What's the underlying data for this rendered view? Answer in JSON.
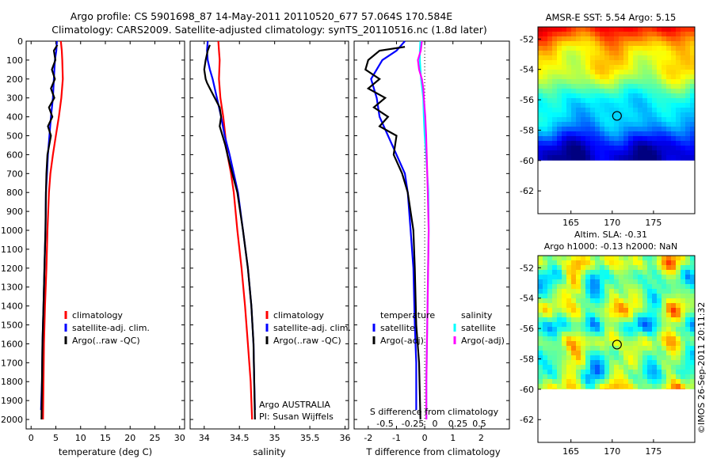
{
  "figure": {
    "title_line1": "Argo profile: CS 5901698_87 14-May-2011 20110520_677 57.064S 170.584E",
    "title_line2": "Climatology: CARS2009. Satellite-adjusted climatology: synTS_20110516.nc (1.8d later)",
    "side_stamp": "©IMOS 26-Sep-2011 20:11:32"
  },
  "colors": {
    "climatology": "#ff0000",
    "satellite": "#0000ff",
    "argo": "#000000",
    "salinity_satellite": "#00ffff",
    "salinity_argo": "#ff00ff"
  },
  "chart_data": [
    {
      "id": "temperature",
      "type": "line",
      "xlabel": "temperature (deg C)",
      "xlim": [
        -1,
        31
      ],
      "xticks": [
        0,
        5,
        10,
        15,
        20,
        25,
        30
      ],
      "ylim": [
        2050,
        0
      ],
      "yticks": [
        0,
        100,
        200,
        300,
        400,
        500,
        600,
        700,
        800,
        900,
        1000,
        1100,
        1200,
        1300,
        1400,
        1500,
        1600,
        1700,
        1800,
        1900,
        2000
      ],
      "legend": [
        "climatology",
        "satellite-adj. clim.",
        "Argo(..raw -QC)"
      ],
      "series": [
        {
          "name": "climatology",
          "color": "#ff0000",
          "points": [
            [
              6.0,
              0
            ],
            [
              6.2,
              50
            ],
            [
              6.3,
              100
            ],
            [
              6.4,
              200
            ],
            [
              6.1,
              300
            ],
            [
              5.6,
              400
            ],
            [
              5.0,
              500
            ],
            [
              4.4,
              600
            ],
            [
              3.9,
              700
            ],
            [
              3.6,
              800
            ],
            [
              3.3,
              1000
            ],
            [
              3.1,
              1200
            ],
            [
              2.8,
              1400
            ],
            [
              2.6,
              1600
            ],
            [
              2.5,
              1800
            ],
            [
              2.4,
              2000
            ]
          ]
        },
        {
          "name": "satellite-adj. clim.",
          "color": "#0000ff",
          "points": [
            [
              5.2,
              0
            ],
            [
              5.1,
              50
            ],
            [
              4.8,
              100
            ],
            [
              4.6,
              200
            ],
            [
              4.4,
              300
            ],
            [
              4.0,
              400
            ],
            [
              3.7,
              500
            ],
            [
              3.4,
              600
            ],
            [
              3.2,
              700
            ],
            [
              3.0,
              800
            ],
            [
              2.9,
              1000
            ],
            [
              2.7,
              1200
            ],
            [
              2.5,
              1400
            ],
            [
              2.3,
              1600
            ],
            [
              2.2,
              1800
            ],
            [
              2.0,
              1950
            ]
          ]
        },
        {
          "name": "Argo(..raw -QC)",
          "color": "#000000",
          "points": [
            [
              5.3,
              20
            ],
            [
              4.6,
              50
            ],
            [
              4.9,
              100
            ],
            [
              4.2,
              150
            ],
            [
              4.8,
              200
            ],
            [
              4.0,
              250
            ],
            [
              4.7,
              300
            ],
            [
              3.6,
              350
            ],
            [
              4.3,
              400
            ],
            [
              3.4,
              450
            ],
            [
              4.0,
              500
            ],
            [
              3.3,
              600
            ],
            [
              3.1,
              700
            ],
            [
              3.0,
              800
            ],
            [
              2.9,
              1000
            ],
            [
              2.7,
              1200
            ],
            [
              2.5,
              1400
            ],
            [
              2.3,
              1600
            ],
            [
              2.2,
              1800
            ],
            [
              2.1,
              2000
            ]
          ]
        }
      ]
    },
    {
      "id": "salinity",
      "type": "line",
      "xlabel": "salinity",
      "xlim": [
        33.8,
        36.05
      ],
      "xticks": [
        34,
        34.5,
        35,
        35.5,
        36
      ],
      "xticklabels": [
        "34",
        "34.5",
        "35",
        "35.5",
        "36"
      ],
      "ylim": [
        2050,
        0
      ],
      "legend": [
        "climatology",
        "satellite-adj. clim.",
        "Argo(..raw -QC)"
      ],
      "annotations": [
        "Argo AUSTRALIA",
        "PI: Susan Wijffels"
      ],
      "series": [
        {
          "name": "climatology",
          "color": "#ff0000",
          "points": [
            [
              34.2,
              0
            ],
            [
              34.21,
              50
            ],
            [
              34.22,
              100
            ],
            [
              34.21,
              200
            ],
            [
              34.23,
              300
            ],
            [
              34.27,
              400
            ],
            [
              34.3,
              500
            ],
            [
              34.33,
              600
            ],
            [
              34.38,
              700
            ],
            [
              34.42,
              800
            ],
            [
              34.47,
              1000
            ],
            [
              34.53,
              1200
            ],
            [
              34.58,
              1400
            ],
            [
              34.62,
              1600
            ],
            [
              34.66,
              1800
            ],
            [
              34.68,
              2000
            ]
          ]
        },
        {
          "name": "satellite-adj. clim.",
          "color": "#0000ff",
          "points": [
            [
              34.05,
              0
            ],
            [
              34.04,
              50
            ],
            [
              34.05,
              100
            ],
            [
              34.08,
              150
            ],
            [
              34.12,
              200
            ],
            [
              34.18,
              300
            ],
            [
              34.24,
              400
            ],
            [
              34.29,
              500
            ],
            [
              34.36,
              600
            ],
            [
              34.42,
              700
            ],
            [
              34.48,
              800
            ],
            [
              34.55,
              1000
            ],
            [
              34.62,
              1200
            ],
            [
              34.67,
              1400
            ],
            [
              34.7,
              1600
            ],
            [
              34.71,
              1800
            ],
            [
              34.72,
              1950
            ]
          ]
        },
        {
          "name": "Argo(..raw -QC)",
          "color": "#000000",
          "points": [
            [
              34.08,
              20
            ],
            [
              34.05,
              50
            ],
            [
              34.02,
              100
            ],
            [
              34.0,
              150
            ],
            [
              34.02,
              200
            ],
            [
              34.04,
              220
            ],
            [
              34.08,
              250
            ],
            [
              34.15,
              300
            ],
            [
              34.22,
              350
            ],
            [
              34.24,
              400
            ],
            [
              34.22,
              450
            ],
            [
              34.26,
              500
            ],
            [
              34.3,
              550
            ],
            [
              34.33,
              600
            ],
            [
              34.4,
              700
            ],
            [
              34.47,
              800
            ],
            [
              34.55,
              1000
            ],
            [
              34.62,
              1200
            ],
            [
              34.67,
              1400
            ],
            [
              34.7,
              1600
            ],
            [
              34.71,
              1800
            ],
            [
              34.72,
              2000
            ]
          ]
        }
      ]
    },
    {
      "id": "difference",
      "type": "line",
      "xlabel_bottom": "T difference from climatology",
      "xlabel_top": "S difference from climatology",
      "xlim": [
        -2.5,
        3.0
      ],
      "xticks": [
        -2,
        -1,
        0,
        1,
        2
      ],
      "xticks_top": [
        -0.5,
        -0.25,
        0,
        0.25,
        0.5
      ],
      "ylim": [
        2050,
        0
      ],
      "legend_temperature": [
        "temperature",
        "satellite",
        "Argo(-adj)"
      ],
      "legend_salinity": [
        "salinity",
        "satellite",
        "Argo(-adj)"
      ],
      "series": [
        {
          "name": "temperature satellite",
          "color": "#0000ff",
          "points": [
            [
              -0.7,
              0
            ],
            [
              -1.0,
              50
            ],
            [
              -1.5,
              100
            ],
            [
              -1.9,
              200
            ],
            [
              -1.7,
              300
            ],
            [
              -1.6,
              400
            ],
            [
              -1.3,
              500
            ],
            [
              -1.0,
              600
            ],
            [
              -0.7,
              700
            ],
            [
              -0.6,
              800
            ],
            [
              -0.5,
              1000
            ],
            [
              -0.4,
              1200
            ],
            [
              -0.35,
              1500
            ],
            [
              -0.3,
              1700
            ],
            [
              -0.3,
              1950
            ]
          ]
        },
        {
          "name": "temperature Argo(-adj)",
          "color": "#000000",
          "points": [
            [
              -0.7,
              30
            ],
            [
              -1.6,
              50
            ],
            [
              -2.0,
              100
            ],
            [
              -2.1,
              150
            ],
            [
              -1.6,
              200
            ],
            [
              -2.0,
              250
            ],
            [
              -1.4,
              300
            ],
            [
              -1.8,
              350
            ],
            [
              -1.3,
              400
            ],
            [
              -1.6,
              450
            ],
            [
              -1.0,
              500
            ],
            [
              -1.1,
              600
            ],
            [
              -0.8,
              700
            ],
            [
              -0.6,
              800
            ],
            [
              -0.4,
              1000
            ],
            [
              -0.35,
              1200
            ],
            [
              -0.3,
              1500
            ],
            [
              -0.2,
              1700
            ],
            [
              -0.15,
              2000
            ]
          ]
        },
        {
          "name": "salinity satellite",
          "color": "#00ffff",
          "points": [
            [
              -0.15,
              0
            ],
            [
              -0.17,
              50
            ],
            [
              -0.17,
              100
            ],
            [
              -0.13,
              200
            ],
            [
              -0.05,
              300
            ],
            [
              -0.03,
              400
            ],
            [
              0.0,
              500
            ],
            [
              0.05,
              600
            ],
            [
              0.09,
              700
            ],
            [
              0.13,
              800
            ],
            [
              0.14,
              1000
            ],
            [
              0.12,
              1200
            ],
            [
              0.1,
              1400
            ],
            [
              0.08,
              1600
            ],
            [
              0.06,
              1800
            ],
            [
              0.06,
              2000
            ]
          ]
        },
        {
          "name": "salinity Argo(-adj)",
          "color": "#ff00ff",
          "points": [
            [
              -0.1,
              0
            ],
            [
              -0.14,
              50
            ],
            [
              -0.24,
              100
            ],
            [
              -0.2,
              150
            ],
            [
              -0.1,
              200
            ],
            [
              -0.05,
              250
            ],
            [
              -0.03,
              300
            ],
            [
              0.02,
              400
            ],
            [
              0.05,
              500
            ],
            [
              0.07,
              600
            ],
            [
              0.09,
              700
            ],
            [
              0.11,
              800
            ],
            [
              0.14,
              1000
            ],
            [
              0.12,
              1200
            ],
            [
              0.1,
              1400
            ],
            [
              0.08,
              1600
            ],
            [
              0.06,
              1800
            ],
            [
              0.06,
              2000
            ]
          ]
        }
      ]
    },
    {
      "id": "sst_map",
      "type": "heatmap",
      "title": "AMSR-E SST: 5.54  Argo: 5.15",
      "xticks": [
        165,
        170,
        175
      ],
      "yticks": [
        -52,
        -54,
        -56,
        -58,
        -60,
        -62
      ],
      "xlim": [
        161,
        180
      ],
      "ylim": [
        -63.5,
        -51.2
      ],
      "data_ylim": [
        -60,
        -51.2
      ],
      "marker": [
        170.58,
        -57.06
      ]
    },
    {
      "id": "sla_map",
      "type": "heatmap",
      "title_line1": "Altim. SLA: -0.31",
      "title_line2": "Argo h1000: -0.13 h2000: NaN",
      "xticks": [
        165,
        170,
        175
      ],
      "yticks": [
        -52,
        -54,
        -56,
        -58,
        -60,
        -62
      ],
      "xlim": [
        161,
        180
      ],
      "ylim": [
        -63.5,
        -51.2
      ],
      "data_ylim": [
        -60,
        -51.2
      ],
      "marker": [
        170.58,
        -57.06
      ]
    }
  ]
}
